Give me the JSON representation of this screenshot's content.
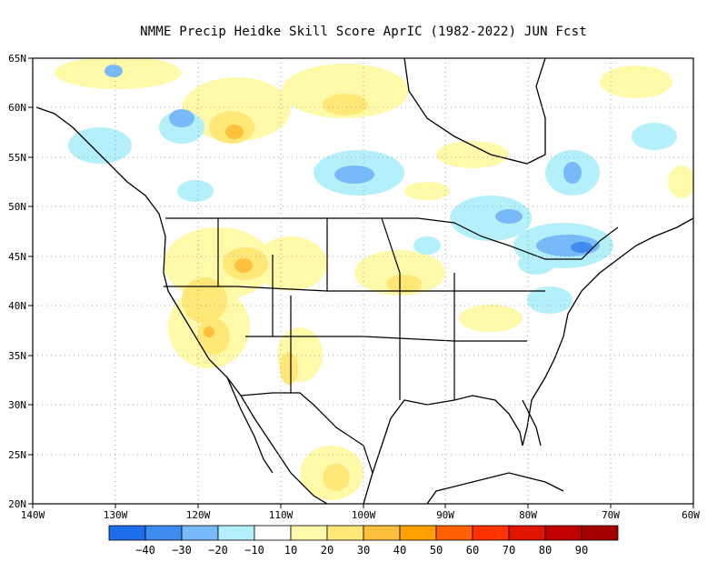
{
  "title": "NMME Precip Heidke Skill Score AprIC (1982-2022) JUN Fcst",
  "lat_labels": [
    "65N",
    "60N",
    "55N",
    "50N",
    "45N",
    "40N",
    "35N",
    "30N",
    "25N",
    "20N"
  ],
  "lon_labels": [
    "140W",
    "130W",
    "120W",
    "110W",
    "100W",
    "90W",
    "80W",
    "70W",
    "60W"
  ],
  "legend": {
    "labels": [
      "-40",
      "-30",
      "-20",
      "-10",
      "10",
      "20",
      "30",
      "40",
      "50",
      "60",
      "70",
      "80",
      "90"
    ],
    "colors": [
      "#1e6eeb",
      "#3c8cf0",
      "#78b9fa",
      "#b4f0fa",
      "#ffffff",
      "#fffaaa",
      "#ffe878",
      "#ffc03c",
      "#ffa000",
      "#ff6000",
      "#ff3200",
      "#e11400",
      "#c00000",
      "#a50000"
    ]
  },
  "shading": {
    "colors": {
      "blue_dark": "#3c8cf0",
      "blue_mid": "#78b9fa",
      "blue_light": "#b4f0fa",
      "yellow_light": "#fffaaa",
      "yellow_mid": "#ffe878",
      "orange": "#ffc03c"
    }
  }
}
